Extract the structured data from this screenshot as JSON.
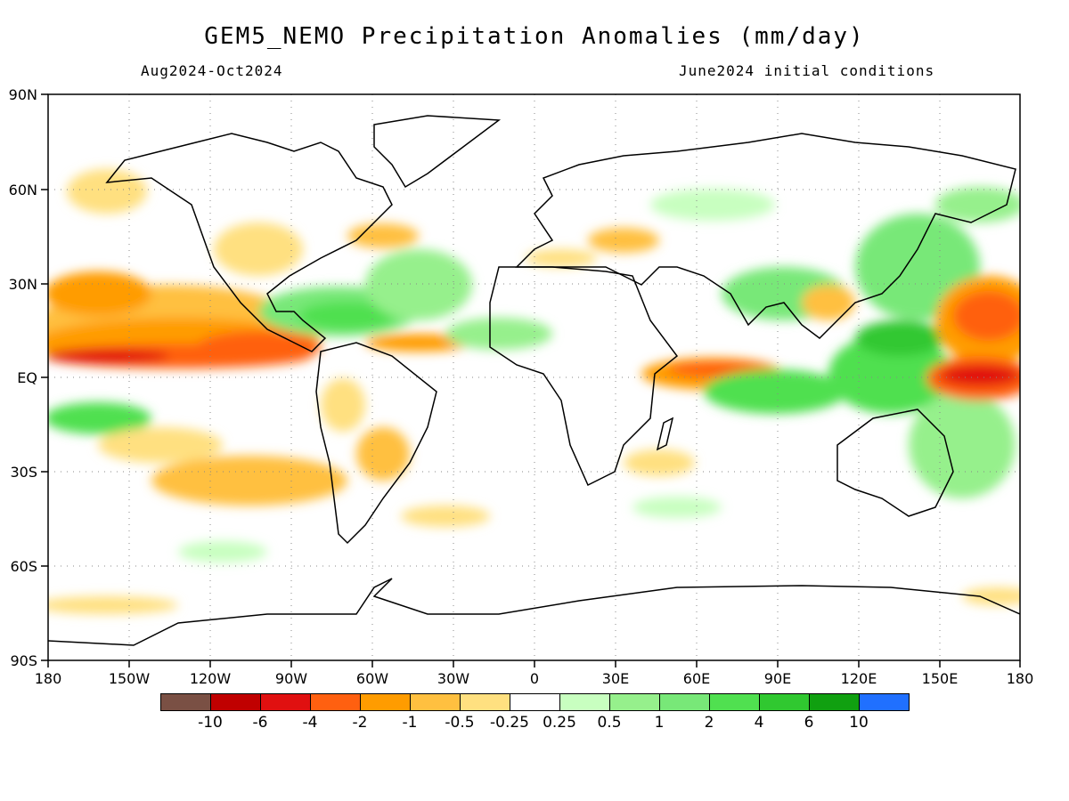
{
  "title": "GEM5_NEMO Precipitation Anomalies (mm/day)",
  "subtitle_left": "Aug2024-Oct2024",
  "subtitle_right": "June2024 initial conditions",
  "axes": {
    "lon_labels": [
      "180",
      "150W",
      "120W",
      "90W",
      "60W",
      "30W",
      "0",
      "30E",
      "60E",
      "90E",
      "120E",
      "150E",
      "180"
    ],
    "lat_labels": [
      "90N",
      "60N",
      "30N",
      "EQ",
      "30S",
      "60S",
      "90S"
    ]
  },
  "colorbar": {
    "colors": [
      "#7a5044",
      "#c00000",
      "#e01010",
      "#ff6010",
      "#ff9c00",
      "#ffc040",
      "#ffe080",
      "#ffffff",
      "#c8ffc0",
      "#96f08c",
      "#78e878",
      "#50e050",
      "#30c830",
      "#10a010",
      "#2070ff"
    ],
    "labels": [
      "-10",
      "-6",
      "-4",
      "-2",
      "-1",
      "-0.5",
      "-0.25",
      "0.25",
      "0.5",
      "1",
      "2",
      "4",
      "6",
      "10"
    ]
  }
}
